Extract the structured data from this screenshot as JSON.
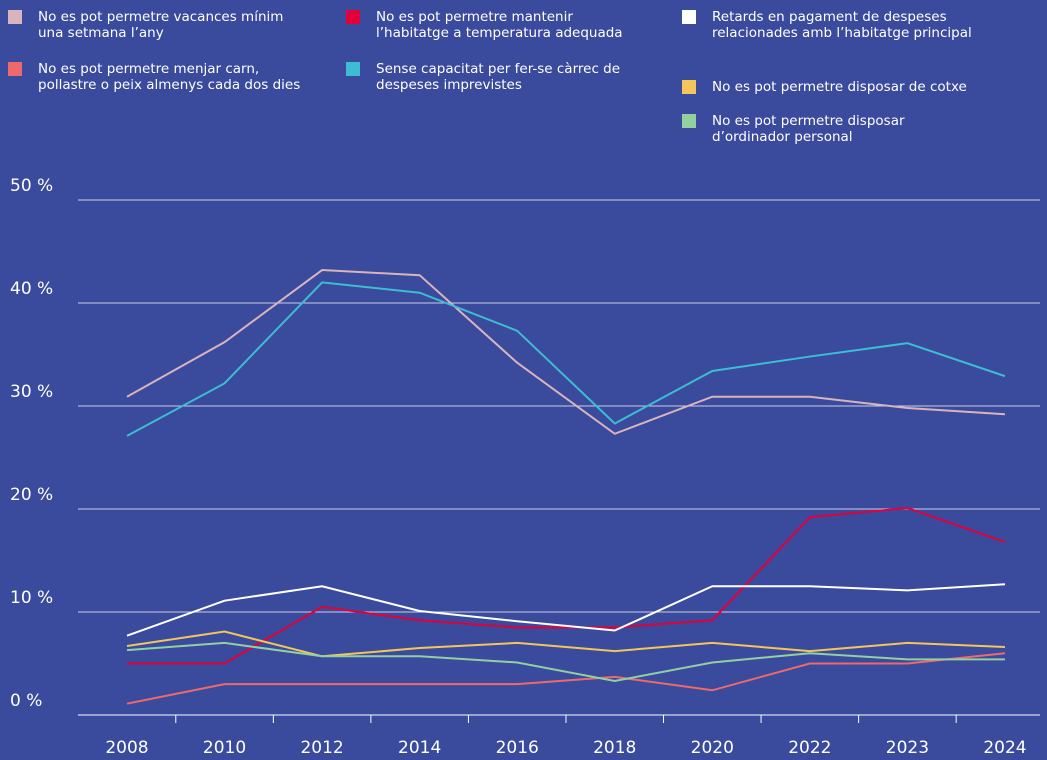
{
  "chart_data": {
    "type": "line",
    "categories": [
      "2008",
      "2010",
      "2012",
      "2014",
      "2016",
      "2018",
      "2020",
      "2022",
      "2023",
      "2024"
    ],
    "ylim": [
      0,
      50
    ],
    "yticks": [
      {
        "value": 0,
        "label": "0 %"
      },
      {
        "value": 10,
        "label": "10 %"
      },
      {
        "value": 20,
        "label": "20 %"
      },
      {
        "value": 30,
        "label": "30 %"
      },
      {
        "value": 40,
        "label": "40 %"
      },
      {
        "value": 50,
        "label": "50 %"
      }
    ],
    "grid": true,
    "series": [
      {
        "name": "No es pot permetre vacances mínim una setmana l’any",
        "color": "#d9b4bd",
        "values": [
          30.9,
          36.2,
          43.2,
          42.7,
          34.2,
          27.3,
          30.9,
          30.9,
          29.8,
          29.2
        ]
      },
      {
        "name": "No es pot permetre menjar carn, pollastre o peix almenys cada dos dies",
        "color": "#ec6a6c",
        "values": [
          1.1,
          3.0,
          3.0,
          3.0,
          3.0,
          3.7,
          2.4,
          5.0,
          5.0,
          6.0
        ]
      },
      {
        "name": "No es pot permetre mantenir l’habitatge a temperatura adequada",
        "color": "#e2003b",
        "values": [
          5.0,
          5.0,
          10.5,
          9.2,
          8.5,
          8.5,
          9.2,
          19.2,
          20.1,
          16.8
        ]
      },
      {
        "name": "Sense capacitat per fer-se càrrec de despeses imprevistes",
        "color": "#3dbdd2",
        "values": [
          27.1,
          32.2,
          42.0,
          41.0,
          37.3,
          28.3,
          33.4,
          34.8,
          36.1,
          32.9
        ]
      },
      {
        "name": "Retards en pagament de despeses relacionades amb l’habitatge principal",
        "color": "#ffffff",
        "values": [
          7.7,
          11.1,
          12.5,
          10.1,
          9.1,
          8.2,
          12.5,
          12.5,
          12.1,
          12.7
        ]
      },
      {
        "name": "No es pot permetre disposar de cotxe",
        "color": "#f2c65a",
        "values": [
          6.7,
          8.1,
          5.7,
          6.5,
          7.0,
          6.2,
          7.0,
          6.2,
          7.0,
          6.6
        ]
      },
      {
        "name": "No es pot permetre disposar d’ordinador personal",
        "color": "#92cfa1",
        "values": [
          6.3,
          7.0,
          5.7,
          5.7,
          5.1,
          3.3,
          5.1,
          6.0,
          5.4,
          5.4
        ]
      }
    ]
  }
}
